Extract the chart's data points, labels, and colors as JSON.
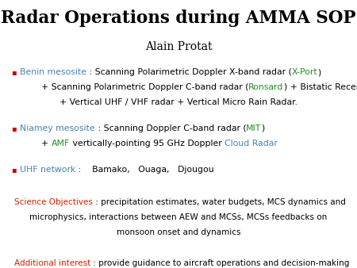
{
  "title": "Radar Operations during AMMA SOP",
  "subtitle": "Alain Protat",
  "bg_color": "#ffffff",
  "black": "#000000",
  "teal": "#4682B4",
  "green": "#228B22",
  "red": "#cc0000",
  "dark_red": "#cc2200",
  "bullet_col": "#cc0000"
}
